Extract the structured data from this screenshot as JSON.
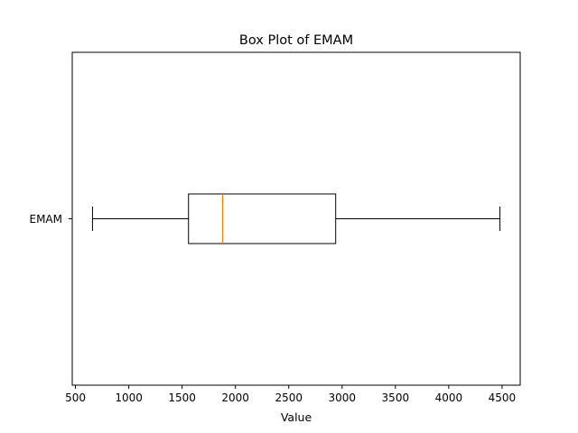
{
  "chart_data": {
    "type": "box",
    "orientation": "horizontal",
    "title": "Box Plot of EMAM",
    "xlabel": "Value",
    "ylabel": "",
    "xlim": [
      470,
      4670
    ],
    "xticks": [
      500,
      1000,
      1500,
      2000,
      2500,
      3000,
      3500,
      4000,
      4500
    ],
    "grid": false,
    "series": [
      {
        "name": "EMAM",
        "whisker_low": 660,
        "q1": 1560,
        "median": 1880,
        "q3": 2940,
        "whisker_high": 4480
      }
    ],
    "colors": {
      "box": "#000000",
      "median": "#ff7f0e",
      "whisker": "#000000"
    }
  }
}
